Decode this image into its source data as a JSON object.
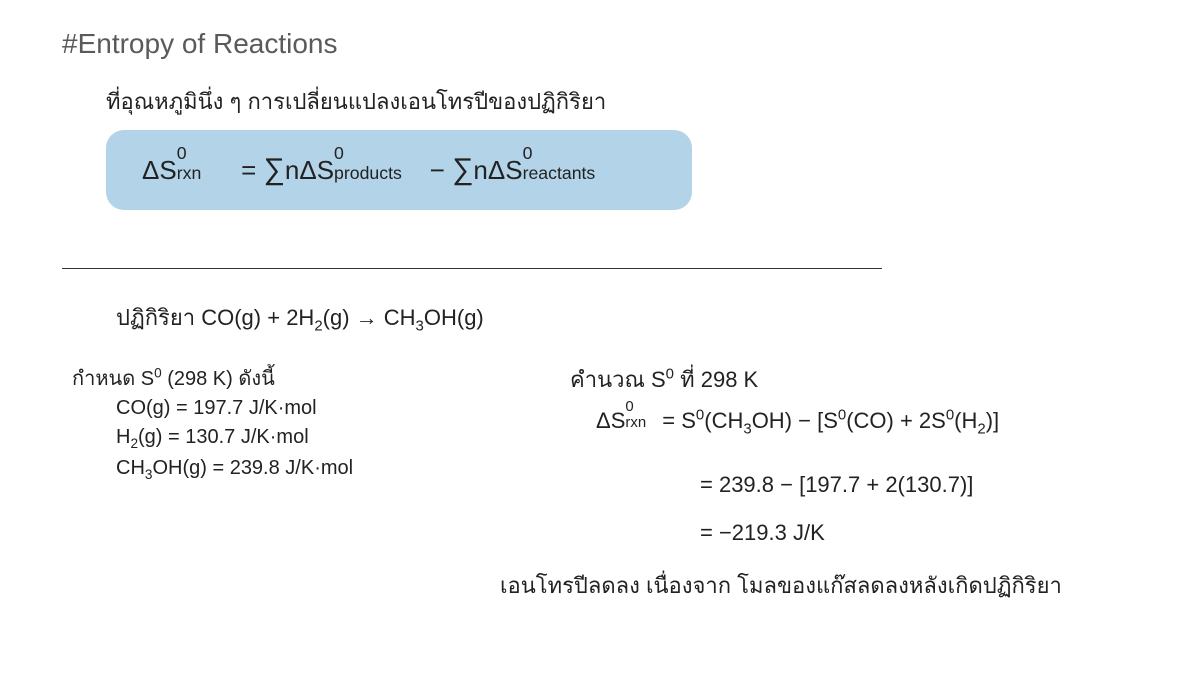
{
  "colors": {
    "background": "#ffffff",
    "text": "#222222",
    "title": "#5a5a5a",
    "box_bg": "#b2d3e8",
    "hr": "#333333"
  },
  "typography": {
    "title_fontsize": 28,
    "body_fontsize": 22,
    "small_fontsize": 20,
    "formula_fontsize": 26,
    "font_family": "Segoe UI, Tahoma, sans-serif"
  },
  "title": "#Entropy of Reactions",
  "intro": "ที่อุณหภูมินึ่ง ๆ การเปลี่ยนแปลงเอนโทรปีของปฏิกิริยา",
  "formula": {
    "lhs_delta": "ΔS",
    "lhs_sup": "0",
    "lhs_sub": "rxn",
    "eq": " = ",
    "sigma": "∑",
    "n": "n",
    "term1_delta": "ΔS",
    "term1_sup": "0",
    "term1_sub": "products",
    "minus": " − ",
    "term2_delta": "ΔS",
    "term2_sup": "0",
    "term2_sub": "reactants"
  },
  "reaction": {
    "label": "ปฏิกิริยา  ",
    "eq_pre": "CO(g) + 2H",
    "eq_h2sub": "2",
    "eq_mid": "(g) → CH",
    "eq_ch3sub": "3",
    "eq_post": "OH(g)"
  },
  "given": {
    "label_pre": "กำหนด S",
    "label_sup": "0",
    "label_post": " (298 K) ดังนี้",
    "line1": "CO(g) = 197.7 J/K·mol",
    "line2_pre": "H",
    "line2_sub": "2",
    "line2_post": "(g) = 130.7 J/K·mol",
    "line3_pre": "CH",
    "line3_sub": "3",
    "line3_post": "OH(g) = 239.8 J/K·mol"
  },
  "calc": {
    "label_pre": "คำนวณ S",
    "label_sup": "0",
    "label_post": " ที่ 298 K",
    "eq_lhs_delta": "ΔS",
    "eq_lhs_sup": "0",
    "eq_lhs_sub": "rxn",
    "eq_eq": " = S",
    "eq_s1_sup": "0",
    "eq_s1_pre": "(CH",
    "eq_s1_sub": "3",
    "eq_s1_post": "OH) − [S",
    "eq_s2_sup": "0",
    "eq_s2_post": "(CO) + 2S",
    "eq_s3_sup": "0",
    "eq_s3_pre": "(H",
    "eq_s3_sub": "2",
    "eq_s3_post": ")]",
    "sub_line": "= 239.8 − [197.7 + 2(130.7)]",
    "res_line": "= −219.3 J/K"
  },
  "conclusion": "เอนโทรปีลดลง เนื่องจาก โมลของแก๊สลดลงหลังเกิดปฏิกิริยา"
}
